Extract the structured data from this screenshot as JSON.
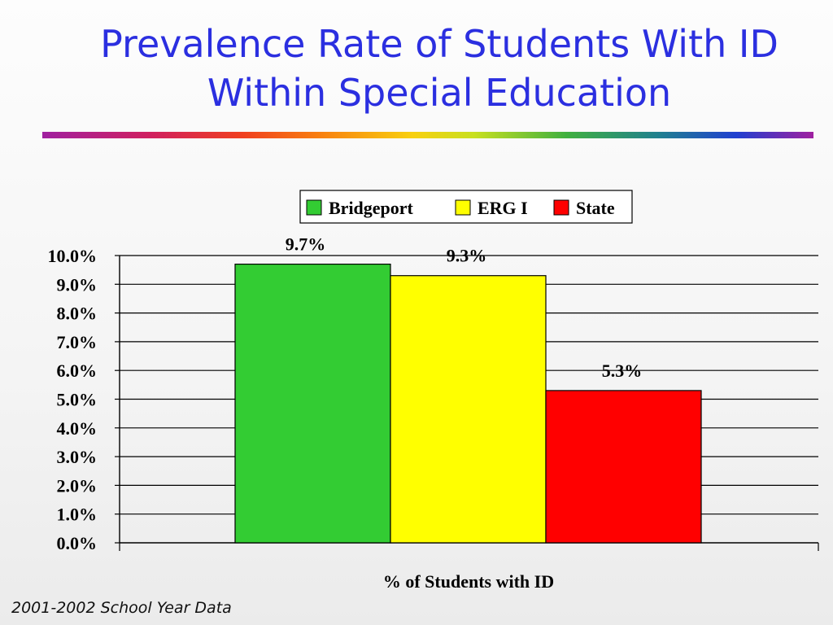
{
  "slide": {
    "title_line1": "Prevalence Rate of Students With ID",
    "title_line2": "Within Special Education",
    "footer": "2001-2002 School Year Data"
  },
  "chart_data": {
    "type": "bar",
    "title": "Prevalence Rate of Students With ID Within Special Education",
    "categories": [
      "% of Students with ID"
    ],
    "xlabel": "% of Students with ID",
    "ylabel": "",
    "ylim": [
      0,
      10
    ],
    "ytick_step": 1,
    "ytick_labels": [
      "0.0%",
      "1.0%",
      "2.0%",
      "3.0%",
      "4.0%",
      "5.0%",
      "6.0%",
      "7.0%",
      "8.0%",
      "9.0%",
      "10.0%"
    ],
    "grid": true,
    "legend_position": "top",
    "series": [
      {
        "name": "Bridgeport",
        "values": [
          9.7
        ],
        "label": "9.7%",
        "color": "#33cc33"
      },
      {
        "name": "ERG I",
        "values": [
          9.3
        ],
        "label": "9.3%",
        "color": "#ffff00"
      },
      {
        "name": "State",
        "values": [
          5.3
        ],
        "label": "5.3%",
        "color": "#ff0000"
      }
    ]
  }
}
